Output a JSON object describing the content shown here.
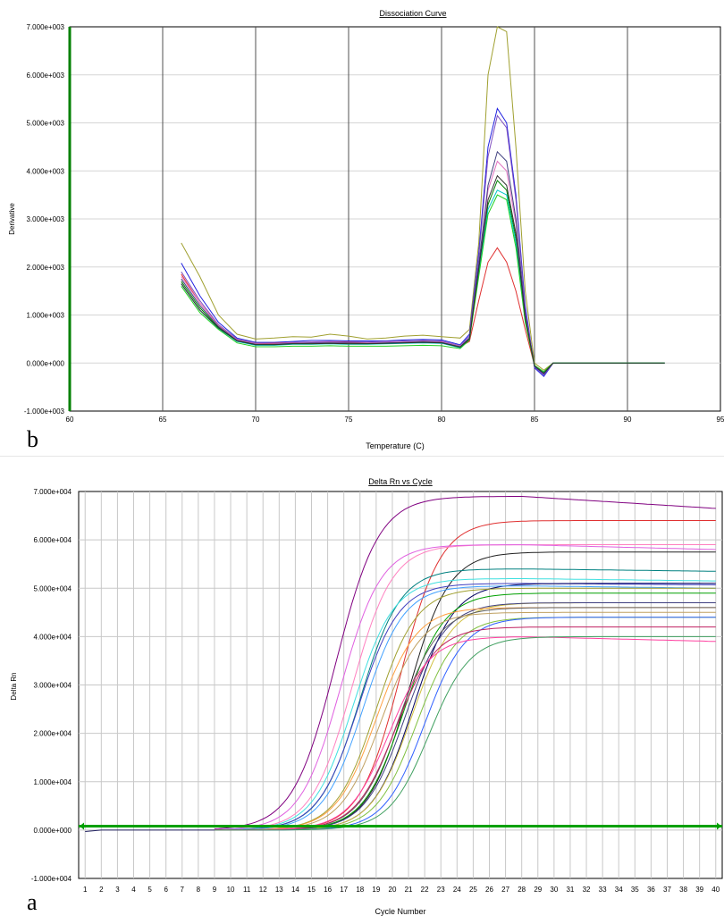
{
  "chart_data": [
    {
      "id": "b",
      "type": "line",
      "panel_label": "b",
      "title": "Dissociation Curve",
      "xlabel": "Temperature (C)",
      "ylabel": "Derivative",
      "xlim": [
        60,
        95
      ],
      "ylim": [
        -1000,
        7000
      ],
      "xticks": [
        60,
        65,
        70,
        75,
        80,
        85,
        90,
        95
      ],
      "xtick_labels": [
        "60",
        "65",
        "70",
        "75",
        "80",
        "85",
        "90",
        "95"
      ],
      "yticks": [
        -1000,
        0,
        1000,
        2000,
        3000,
        4000,
        5000,
        6000,
        7000
      ],
      "ytick_labels": [
        "-1.000e+003",
        "0.000e+000",
        "1.000e+003",
        "2.000e+003",
        "3.000e+003",
        "4.000e+003",
        "5.000e+003",
        "6.000e+003",
        "7.000e+003"
      ],
      "grid": "vertical",
      "x": [
        66,
        67,
        68,
        69,
        70,
        71,
        72,
        73,
        74,
        75,
        76,
        77,
        78,
        79,
        80,
        81,
        81.5,
        82,
        82.5,
        83,
        83.5,
        84,
        84.5,
        85,
        85.5,
        86,
        87,
        88,
        89,
        90,
        91,
        92
      ],
      "series": [
        {
          "color": "#a0a030",
          "values": [
            2500,
            1800,
            1000,
            600,
            500,
            520,
            550,
            540,
            600,
            560,
            500,
            520,
            560,
            580,
            550,
            520,
            700,
            2500,
            6000,
            7000,
            6900,
            4500,
            1500,
            0,
            -150,
            0,
            0,
            0,
            0,
            0,
            0,
            0
          ]
        },
        {
          "color": "#2020e0",
          "values": [
            2080,
            1400,
            850,
            520,
            430,
            430,
            450,
            470,
            470,
            460,
            460,
            460,
            480,
            490,
            480,
            380,
            600,
            2300,
            4500,
            5300,
            5000,
            3500,
            1200,
            -100,
            -280,
            0,
            0,
            0,
            0,
            0,
            0,
            0
          ]
        },
        {
          "color": "#8050c0",
          "values": [
            1900,
            1300,
            800,
            500,
            420,
            420,
            430,
            440,
            450,
            440,
            440,
            450,
            460,
            470,
            460,
            360,
            560,
            2200,
            4300,
            5150,
            4900,
            3400,
            1100,
            -80,
            -250,
            0,
            0,
            0,
            0,
            0,
            0,
            0
          ]
        },
        {
          "color": "#e03030",
          "values": [
            1850,
            1250,
            780,
            480,
            400,
            410,
            420,
            420,
            430,
            430,
            420,
            420,
            430,
            450,
            440,
            340,
            450,
            1300,
            2100,
            2400,
            2100,
            1500,
            700,
            -50,
            -200,
            0,
            0,
            0,
            0,
            0,
            0,
            0
          ]
        },
        {
          "color": "#e070c0",
          "values": [
            1800,
            1250,
            780,
            480,
            400,
            400,
            420,
            430,
            430,
            420,
            420,
            430,
            440,
            450,
            440,
            350,
            520,
            2000,
            3600,
            4200,
            4000,
            2900,
            1000,
            -60,
            -220,
            0,
            0,
            0,
            0,
            0,
            0,
            0
          ]
        },
        {
          "color": "#404080",
          "values": [
            1750,
            1200,
            760,
            470,
            390,
            390,
            410,
            420,
            420,
            420,
            410,
            420,
            430,
            440,
            430,
            340,
            520,
            2050,
            3700,
            4400,
            4200,
            3000,
            1000,
            -70,
            -230,
            0,
            0,
            0,
            0,
            0,
            0,
            0
          ]
        },
        {
          "color": "#008000",
          "values": [
            1700,
            1150,
            740,
            460,
            380,
            380,
            400,
            400,
            410,
            400,
            400,
            410,
            420,
            430,
            420,
            330,
            500,
            1900,
            3300,
            3800,
            3600,
            2600,
            900,
            -60,
            -200,
            0,
            0,
            0,
            0,
            0,
            0,
            0
          ]
        },
        {
          "color": "#00c8c8",
          "values": [
            1650,
            1100,
            720,
            450,
            370,
            370,
            390,
            390,
            400,
            390,
            390,
            400,
            410,
            420,
            410,
            320,
            490,
            1850,
            3200,
            3600,
            3500,
            2500,
            880,
            -50,
            -190,
            0,
            0,
            0,
            0,
            0,
            0,
            0
          ]
        },
        {
          "color": "#20d020",
          "values": [
            1600,
            1050,
            700,
            420,
            340,
            340,
            350,
            350,
            360,
            350,
            350,
            350,
            360,
            370,
            360,
            300,
            480,
            1800,
            3100,
            3500,
            3400,
            2400,
            850,
            -50,
            -180,
            0,
            0,
            0,
            0,
            0,
            0,
            0
          ]
        },
        {
          "color": "#303030",
          "values": [
            1650,
            1100,
            730,
            460,
            380,
            380,
            400,
            400,
            410,
            400,
            400,
            410,
            420,
            430,
            420,
            330,
            500,
            1950,
            3400,
            3900,
            3700,
            2700,
            950,
            -60,
            -210,
            0,
            0,
            0,
            0,
            0,
            0,
            0
          ]
        }
      ]
    },
    {
      "id": "a",
      "type": "line",
      "panel_label": "a",
      "title": "Delta Rn vs Cycle",
      "xlabel": "Cycle Number",
      "ylabel": "Delta Rn",
      "xlim": [
        1,
        40
      ],
      "ylim": [
        -10000,
        70000
      ],
      "xticks": [
        1,
        2,
        3,
        4,
        5,
        6,
        7,
        8,
        9,
        10,
        11,
        12,
        13,
        14,
        15,
        16,
        17,
        18,
        19,
        20,
        21,
        22,
        23,
        24,
        25,
        26,
        27,
        28,
        29,
        30,
        31,
        32,
        33,
        34,
        35,
        36,
        37,
        38,
        39,
        40
      ],
      "xtick_labels": [
        "1",
        "2",
        "3",
        "4",
        "5",
        "6",
        "7",
        "8",
        "9",
        "10",
        "11",
        "12",
        "13",
        "14",
        "15",
        "16",
        "17",
        "18",
        "19",
        "20",
        "21",
        "22",
        "23",
        "24",
        "25",
        "26",
        "27",
        "28",
        "29",
        "30",
        "31",
        "32",
        "33",
        "34",
        "35",
        "36",
        "37",
        "38",
        "39",
        "40"
      ],
      "yticks": [
        -10000,
        0,
        10000,
        20000,
        30000,
        40000,
        50000,
        60000,
        70000
      ],
      "ytick_labels": [
        "-1.000e+004",
        "0.000e+000",
        "1.000e+004",
        "2.000e+004",
        "3.000e+004",
        "4.000e+004",
        "5.000e+004",
        "6.000e+004",
        "7.000e+004"
      ],
      "grid": "both",
      "threshold": 800,
      "threshold_color": "#00a000",
      "x_start": 9,
      "x_end": 40,
      "series": [
        {
          "color": "#800080",
          "plateau": 69000,
          "midpoint": 16.5,
          "slope": 1.6,
          "end_drop": 2500
        },
        {
          "color": "#e03030",
          "plateau": 64000,
          "midpoint": 20.5,
          "slope": 1.5,
          "end_drop": 0
        },
        {
          "color": "#ff80c0",
          "plateau": 59000,
          "midpoint": 17.5,
          "slope": 1.5,
          "end_drop": 0
        },
        {
          "color": "#e060e0",
          "plateau": 59000,
          "midpoint": 16.8,
          "slope": 1.5,
          "end_drop": 1000
        },
        {
          "color": "#202020",
          "plateau": 57500,
          "midpoint": 21.0,
          "slope": 1.5,
          "end_drop": 0
        },
        {
          "color": "#008080",
          "plateau": 54000,
          "midpoint": 18.0,
          "slope": 1.5,
          "end_drop": 500
        },
        {
          "color": "#40e0e0",
          "plateau": 52000,
          "midpoint": 17.6,
          "slope": 1.5,
          "end_drop": 500
        },
        {
          "color": "#4040c0",
          "plateau": 51000,
          "midpoint": 17.9,
          "slope": 1.5,
          "end_drop": 300
        },
        {
          "color": "#000060",
          "plateau": 51000,
          "midpoint": 21.3,
          "slope": 1.5,
          "end_drop": 0
        },
        {
          "color": "#40a0ff",
          "plateau": 50500,
          "midpoint": 18.2,
          "slope": 1.5,
          "end_drop": 500
        },
        {
          "color": "#a0a030",
          "plateau": 50000,
          "midpoint": 19.0,
          "slope": 1.5,
          "end_drop": 0
        },
        {
          "color": "#00a000",
          "plateau": 49000,
          "midpoint": 20.7,
          "slope": 1.5,
          "end_drop": 0
        },
        {
          "color": "#d0c040",
          "plateau": 47000,
          "midpoint": 21.2,
          "slope": 1.5,
          "end_drop": 0
        },
        {
          "color": "#404080",
          "plateau": 47000,
          "midpoint": 20.8,
          "slope": 1.5,
          "end_drop": 0
        },
        {
          "color": "#ffa040",
          "plateau": 46000,
          "midpoint": 19.0,
          "slope": 1.5,
          "end_drop": 0
        },
        {
          "color": "#606060",
          "plateau": 46000,
          "midpoint": 20.4,
          "slope": 1.5,
          "end_drop": 0
        },
        {
          "color": "#c0a060",
          "plateau": 45000,
          "midpoint": 19.3,
          "slope": 1.5,
          "end_drop": 0
        },
        {
          "color": "#80c040",
          "plateau": 44000,
          "midpoint": 21.5,
          "slope": 1.5,
          "end_drop": 0
        },
        {
          "color": "#3060ff",
          "plateau": 44000,
          "midpoint": 22.0,
          "slope": 1.5,
          "end_drop": 0
        },
        {
          "color": "#c02060",
          "plateau": 42000,
          "midpoint": 20.2,
          "slope": 1.5,
          "end_drop": 0
        },
        {
          "color": "#ff40a0",
          "plateau": 40000,
          "midpoint": 19.8,
          "slope": 1.5,
          "end_drop": 1000
        },
        {
          "color": "#40a060",
          "plateau": 40000,
          "midpoint": 22.3,
          "slope": 1.5,
          "end_drop": 0
        }
      ]
    }
  ]
}
